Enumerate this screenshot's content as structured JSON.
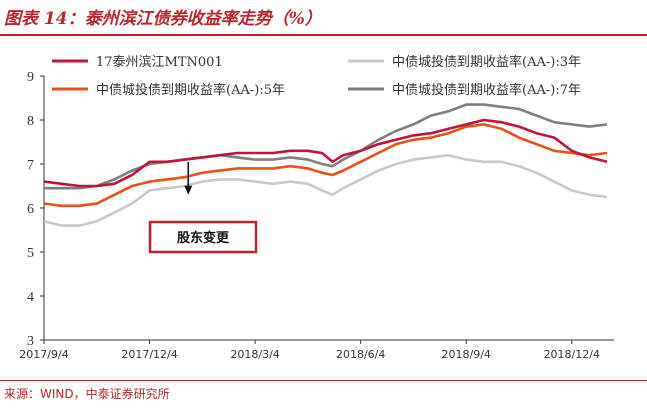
{
  "header": {
    "title": "图表 14：泰州滨江债券收益率走势（%）"
  },
  "footer": {
    "source": "来源：WIND，中泰证券研究所"
  },
  "chart_data": {
    "type": "line",
    "title": "",
    "xlabel": "",
    "ylabel": "",
    "ylim": [
      3,
      9
    ],
    "yticks": [
      "3",
      "4",
      "5",
      "6",
      "7",
      "8",
      "9"
    ],
    "x_ticks": [
      "2017/9/4",
      "2017/12/4",
      "2018/3/4",
      "2018/6/4",
      "2018/9/4",
      "2018/12/4"
    ],
    "x_tick_values": [
      0,
      3,
      6,
      9,
      12,
      15
    ],
    "xlim": [
      0,
      16.2
    ],
    "grid": false,
    "legend": "top",
    "colors": {
      "s17": "#c0143c",
      "aa3": "#c8c8c8",
      "aa5": "#e8501c",
      "aa7": "#7f7f7f"
    },
    "annotation": {
      "label": "股东变更",
      "x": 4.1,
      "y_from": 7.05,
      "y_to": 6.3
    },
    "series": [
      {
        "key": "s17",
        "name": "17泰州滨江MTN001",
        "x": [
          0,
          0.5,
          1,
          1.5,
          2,
          2.5,
          3,
          3.5,
          4,
          4.5,
          5,
          5.5,
          6,
          6.5,
          7,
          7.5,
          7.9,
          8.2,
          8.5,
          9,
          9.5,
          10,
          10.5,
          11,
          11.5,
          12,
          12.5,
          13,
          13.5,
          14,
          14.5,
          15,
          15.5,
          16
        ],
        "values": [
          6.6,
          6.55,
          6.5,
          6.5,
          6.55,
          6.75,
          7.05,
          7.05,
          7.1,
          7.15,
          7.2,
          7.25,
          7.25,
          7.25,
          7.3,
          7.3,
          7.25,
          7.05,
          7.2,
          7.3,
          7.45,
          7.55,
          7.65,
          7.7,
          7.8,
          7.9,
          8.0,
          7.95,
          7.85,
          7.7,
          7.6,
          7.3,
          7.15,
          7.05
        ]
      },
      {
        "key": "aa3",
        "name": "中债城投债到期收益率(AA-):3年",
        "x": [
          0,
          0.5,
          1,
          1.5,
          2,
          2.5,
          3,
          3.5,
          4,
          4.5,
          5,
          5.5,
          6,
          6.5,
          7,
          7.5,
          7.9,
          8.2,
          8.5,
          9,
          9.5,
          10,
          10.5,
          11,
          11.5,
          12,
          12.5,
          13,
          13.5,
          14,
          14.5,
          15,
          15.5,
          16
        ],
        "values": [
          5.7,
          5.6,
          5.6,
          5.7,
          5.9,
          6.1,
          6.4,
          6.45,
          6.5,
          6.6,
          6.65,
          6.65,
          6.6,
          6.55,
          6.6,
          6.55,
          6.4,
          6.3,
          6.45,
          6.65,
          6.85,
          7.0,
          7.1,
          7.15,
          7.2,
          7.1,
          7.05,
          7.05,
          6.95,
          6.8,
          6.6,
          6.4,
          6.3,
          6.25
        ]
      },
      {
        "key": "aa5",
        "name": "中债城投债到期收益率(AA-):5年",
        "x": [
          0,
          0.5,
          1,
          1.5,
          2,
          2.5,
          3,
          3.5,
          4,
          4.5,
          5,
          5.5,
          6,
          6.5,
          7,
          7.5,
          7.9,
          8.2,
          8.5,
          9,
          9.5,
          10,
          10.5,
          11,
          11.5,
          12,
          12.5,
          13,
          13.5,
          14,
          14.5,
          15,
          15.5,
          16
        ],
        "values": [
          6.1,
          6.05,
          6.05,
          6.1,
          6.3,
          6.5,
          6.6,
          6.65,
          6.7,
          6.8,
          6.85,
          6.9,
          6.9,
          6.9,
          6.95,
          6.9,
          6.8,
          6.75,
          6.85,
          7.05,
          7.25,
          7.45,
          7.55,
          7.6,
          7.7,
          7.85,
          7.9,
          7.8,
          7.6,
          7.45,
          7.3,
          7.25,
          7.2,
          7.25
        ]
      },
      {
        "key": "aa7",
        "name": "中债城投债到期收益率(AA-):7年",
        "x": [
          0,
          0.5,
          1,
          1.5,
          2,
          2.5,
          3,
          3.5,
          4,
          4.5,
          5,
          5.5,
          6,
          6.5,
          7,
          7.5,
          7.9,
          8.2,
          8.5,
          9,
          9.5,
          10,
          10.5,
          11,
          11.5,
          12,
          12.5,
          13,
          13.5,
          14,
          14.5,
          15,
          15.5,
          16
        ],
        "values": [
          6.45,
          6.45,
          6.45,
          6.5,
          6.65,
          6.85,
          7.0,
          7.05,
          7.1,
          7.15,
          7.2,
          7.15,
          7.1,
          7.1,
          7.15,
          7.1,
          7.0,
          6.95,
          7.1,
          7.3,
          7.55,
          7.75,
          7.9,
          8.1,
          8.2,
          8.35,
          8.35,
          8.3,
          8.25,
          8.1,
          7.95,
          7.9,
          7.85,
          7.9
        ]
      }
    ]
  }
}
